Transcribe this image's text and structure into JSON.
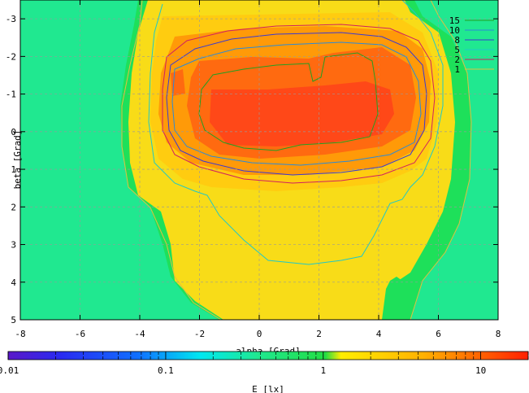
{
  "chart_data": {
    "type": "heatmap",
    "title": "",
    "xlabel": "alpha [Grad]",
    "ylabel": "beta [Grad]",
    "xlim": [
      -8,
      8
    ],
    "ylim": [
      -3.5,
      5
    ],
    "y_inverted": true,
    "x_ticks": [
      -8,
      -6,
      -4,
      -2,
      0,
      2,
      4,
      6,
      8
    ],
    "x_tick_labels": [
      "-8",
      "-6",
      "-4",
      "-2",
      "0",
      "2",
      "4",
      "6",
      "8"
    ],
    "y_ticks": [
      -3,
      -2,
      -1,
      0,
      1,
      2,
      3,
      4,
      5
    ],
    "y_tick_labels": [
      "-3",
      "-2",
      "-1",
      "0",
      "1",
      "2",
      "3",
      "4",
      "5"
    ],
    "grid": true,
    "colorbar": {
      "label": "E [lx]",
      "scale": "log",
      "range": [
        0.01,
        20
      ],
      "ticks": [
        0.01,
        0.1,
        1,
        10
      ],
      "tick_labels": [
        "0.01",
        "0.1",
        "1",
        "10"
      ]
    },
    "contours": {
      "legend_position": "top-right",
      "levels": [
        {
          "label": "15",
          "value": 15,
          "color": "#22a022"
        },
        {
          "label": "10",
          "value": 10,
          "color": "#2a8ad8"
        },
        {
          "label": "8",
          "value": 8,
          "color": "#3a3ad0"
        },
        {
          "label": "5",
          "value": 5,
          "color": "#20c8c8"
        },
        {
          "label": "2",
          "value": 2,
          "color": "#d02060"
        },
        {
          "label": "1",
          "value": 1,
          "color": "#e0c040"
        }
      ]
    },
    "regions_description": [
      {
        "level": "background",
        "value": 0.5
      },
      {
        "level": "above_1",
        "alpha_range": [
          -4.9,
          5.9
        ],
        "beta_range": [
          -3.5,
          4.9
        ]
      },
      {
        "level": "above_5",
        "alpha_range": [
          -4.1,
          5.6
        ],
        "beta_range": [
          -3.5,
          3.5
        ]
      },
      {
        "level": "above_8",
        "alpha_range": [
          -3.9,
          5.5
        ],
        "beta_range": [
          -2.6,
          1.6
        ]
      },
      {
        "level": "above_15",
        "alpha_range": [
          -2.1,
          3.9
        ],
        "beta_range": [
          -2.1,
          0.6
        ]
      }
    ]
  }
}
